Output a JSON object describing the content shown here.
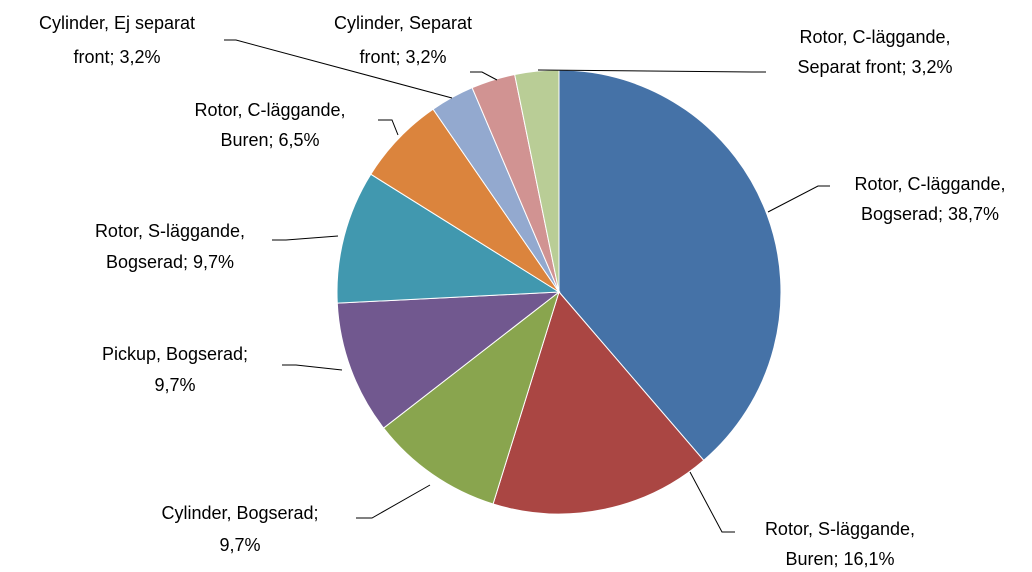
{
  "chart_data": {
    "type": "pie",
    "values": [
      38.7,
      16.1,
      9.7,
      9.7,
      9.7,
      6.5,
      3.2,
      3.2,
      3.2
    ],
    "value_labels": [
      [
        "Rotor, C-läggande,",
        "Bogserad; 38,7%"
      ],
      [
        "Rotor, S-läggande,",
        "Buren; 16,1%"
      ],
      [
        "Cylinder, Bogserad;",
        "9,7%"
      ],
      [
        "Pickup, Bogserad;",
        "9,7%"
      ],
      [
        "Rotor, S-läggande,",
        "Bogserad; 9,7%"
      ],
      [
        "Rotor, C-läggande,",
        "Buren; 6,5%"
      ],
      [
        "Cylinder, Ej separat",
        "front; 3,2%"
      ],
      [
        "Cylinder, Separat",
        "front; 3,2%"
      ],
      [
        "Rotor, C-läggande,",
        "Separat front; 3,2%"
      ]
    ],
    "colors": [
      "#4572a7",
      "#aa4643",
      "#89a54e",
      "#71588f",
      "#4198af",
      "#db843d",
      "#93a9cf",
      "#d19392",
      "#b9cd96"
    ]
  }
}
